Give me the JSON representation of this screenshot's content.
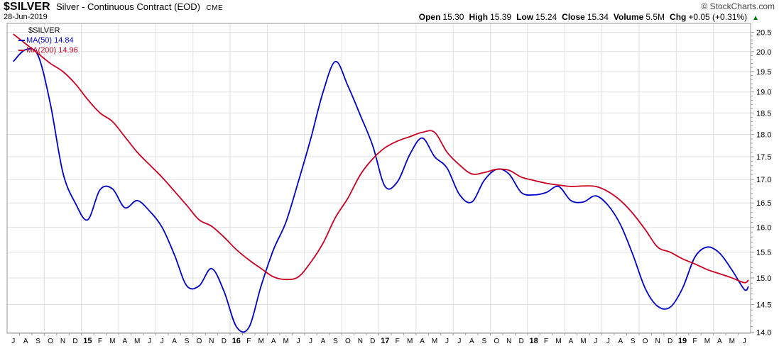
{
  "header": {
    "symbol": "$SILVER",
    "name": "Silver - Continuous Contract (EOD)",
    "exchange": "CME",
    "date": "28-Jun-2019",
    "credit": "© StockCharts.com",
    "quote": {
      "open_label": "Open",
      "open": "15.30",
      "high_label": "High",
      "high": "15.39",
      "low_label": "Low",
      "low": "15.24",
      "close_label": "Close",
      "close": "15.34",
      "volume_label": "Volume",
      "volume": "5.5M",
      "chg_label": "Chg",
      "chg": "+0.05 (+0.31%)",
      "chg_arrow": "▲"
    }
  },
  "legend": {
    "title": "$SILVER",
    "ma50_label": "MA(50) 14.84",
    "ma200_label": "MA(200) 14.96"
  },
  "colors": {
    "ma50": "#0000cc",
    "ma200": "#cc0022",
    "grid": "#e0e0e0",
    "axis": "#999999",
    "tick_text": "#000000",
    "up_green": "#007a00"
  },
  "chart_data": {
    "type": "line",
    "title": "$SILVER Silver - Continuous Contract (EOD) CME",
    "x_start": "Jul 2014",
    "x_end": "28 Jun 2019",
    "x_labels": [
      "J",
      "A",
      "S",
      "O",
      "N",
      "D",
      "15",
      "F",
      "M",
      "A",
      "M",
      "J",
      "J",
      "A",
      "S",
      "O",
      "N",
      "D",
      "16",
      "F",
      "M",
      "A",
      "M",
      "J",
      "J",
      "A",
      "S",
      "O",
      "N",
      "D",
      "17",
      "F",
      "M",
      "A",
      "M",
      "J",
      "J",
      "A",
      "S",
      "O",
      "N",
      "D",
      "18",
      "F",
      "M",
      "A",
      "M",
      "J",
      "J",
      "A",
      "S",
      "O",
      "N",
      "D",
      "19",
      "F",
      "M",
      "A",
      "M",
      "J"
    ],
    "y_ticks": [
      14.0,
      14.5,
      15.0,
      15.5,
      16.0,
      16.5,
      17.0,
      17.5,
      18.0,
      18.5,
      19.0,
      19.5,
      20.0,
      20.5
    ],
    "ylim": [
      14.0,
      20.5
    ],
    "y_scale": "log",
    "grid": "on",
    "legend_position": "top-left",
    "series": [
      {
        "name": "MA(50)",
        "current": 14.84,
        "color_key": "ma50",
        "values": [
          19.75,
          20.05,
          19.9,
          18.7,
          17.15,
          16.5,
          16.15,
          16.78,
          16.8,
          16.4,
          16.55,
          16.33,
          16.0,
          15.45,
          14.85,
          14.85,
          15.18,
          14.75,
          14.1,
          14.08,
          14.85,
          15.55,
          16.1,
          16.95,
          17.9,
          19.0,
          19.75,
          19.15,
          18.45,
          17.75,
          16.85,
          16.95,
          17.55,
          17.92,
          17.5,
          17.25,
          16.68,
          16.52,
          16.98,
          17.22,
          17.12,
          16.72,
          16.67,
          16.72,
          16.85,
          16.55,
          16.52,
          16.65,
          16.45,
          16.05,
          15.45,
          14.8,
          14.47,
          14.45,
          14.8,
          15.4,
          15.6,
          15.48,
          15.15,
          14.78,
          14.84
        ]
      },
      {
        "name": "MA(200)",
        "current": 14.96,
        "color_key": "ma200",
        "values": [
          20.45,
          20.2,
          19.95,
          19.7,
          19.5,
          19.2,
          18.82,
          18.5,
          18.3,
          17.95,
          17.6,
          17.32,
          17.05,
          16.75,
          16.45,
          16.15,
          16.02,
          15.8,
          15.55,
          15.35,
          15.18,
          15.02,
          14.97,
          15.02,
          15.3,
          15.68,
          16.2,
          16.6,
          17.1,
          17.45,
          17.7,
          17.85,
          17.95,
          18.05,
          18.05,
          17.6,
          17.32,
          17.12,
          17.15,
          17.22,
          17.2,
          17.05,
          16.98,
          16.92,
          16.88,
          16.85,
          16.86,
          16.85,
          16.74,
          16.55,
          16.28,
          15.95,
          15.6,
          15.5,
          15.37,
          15.27,
          15.16,
          15.08,
          15.0,
          14.91,
          14.96
        ]
      }
    ]
  }
}
